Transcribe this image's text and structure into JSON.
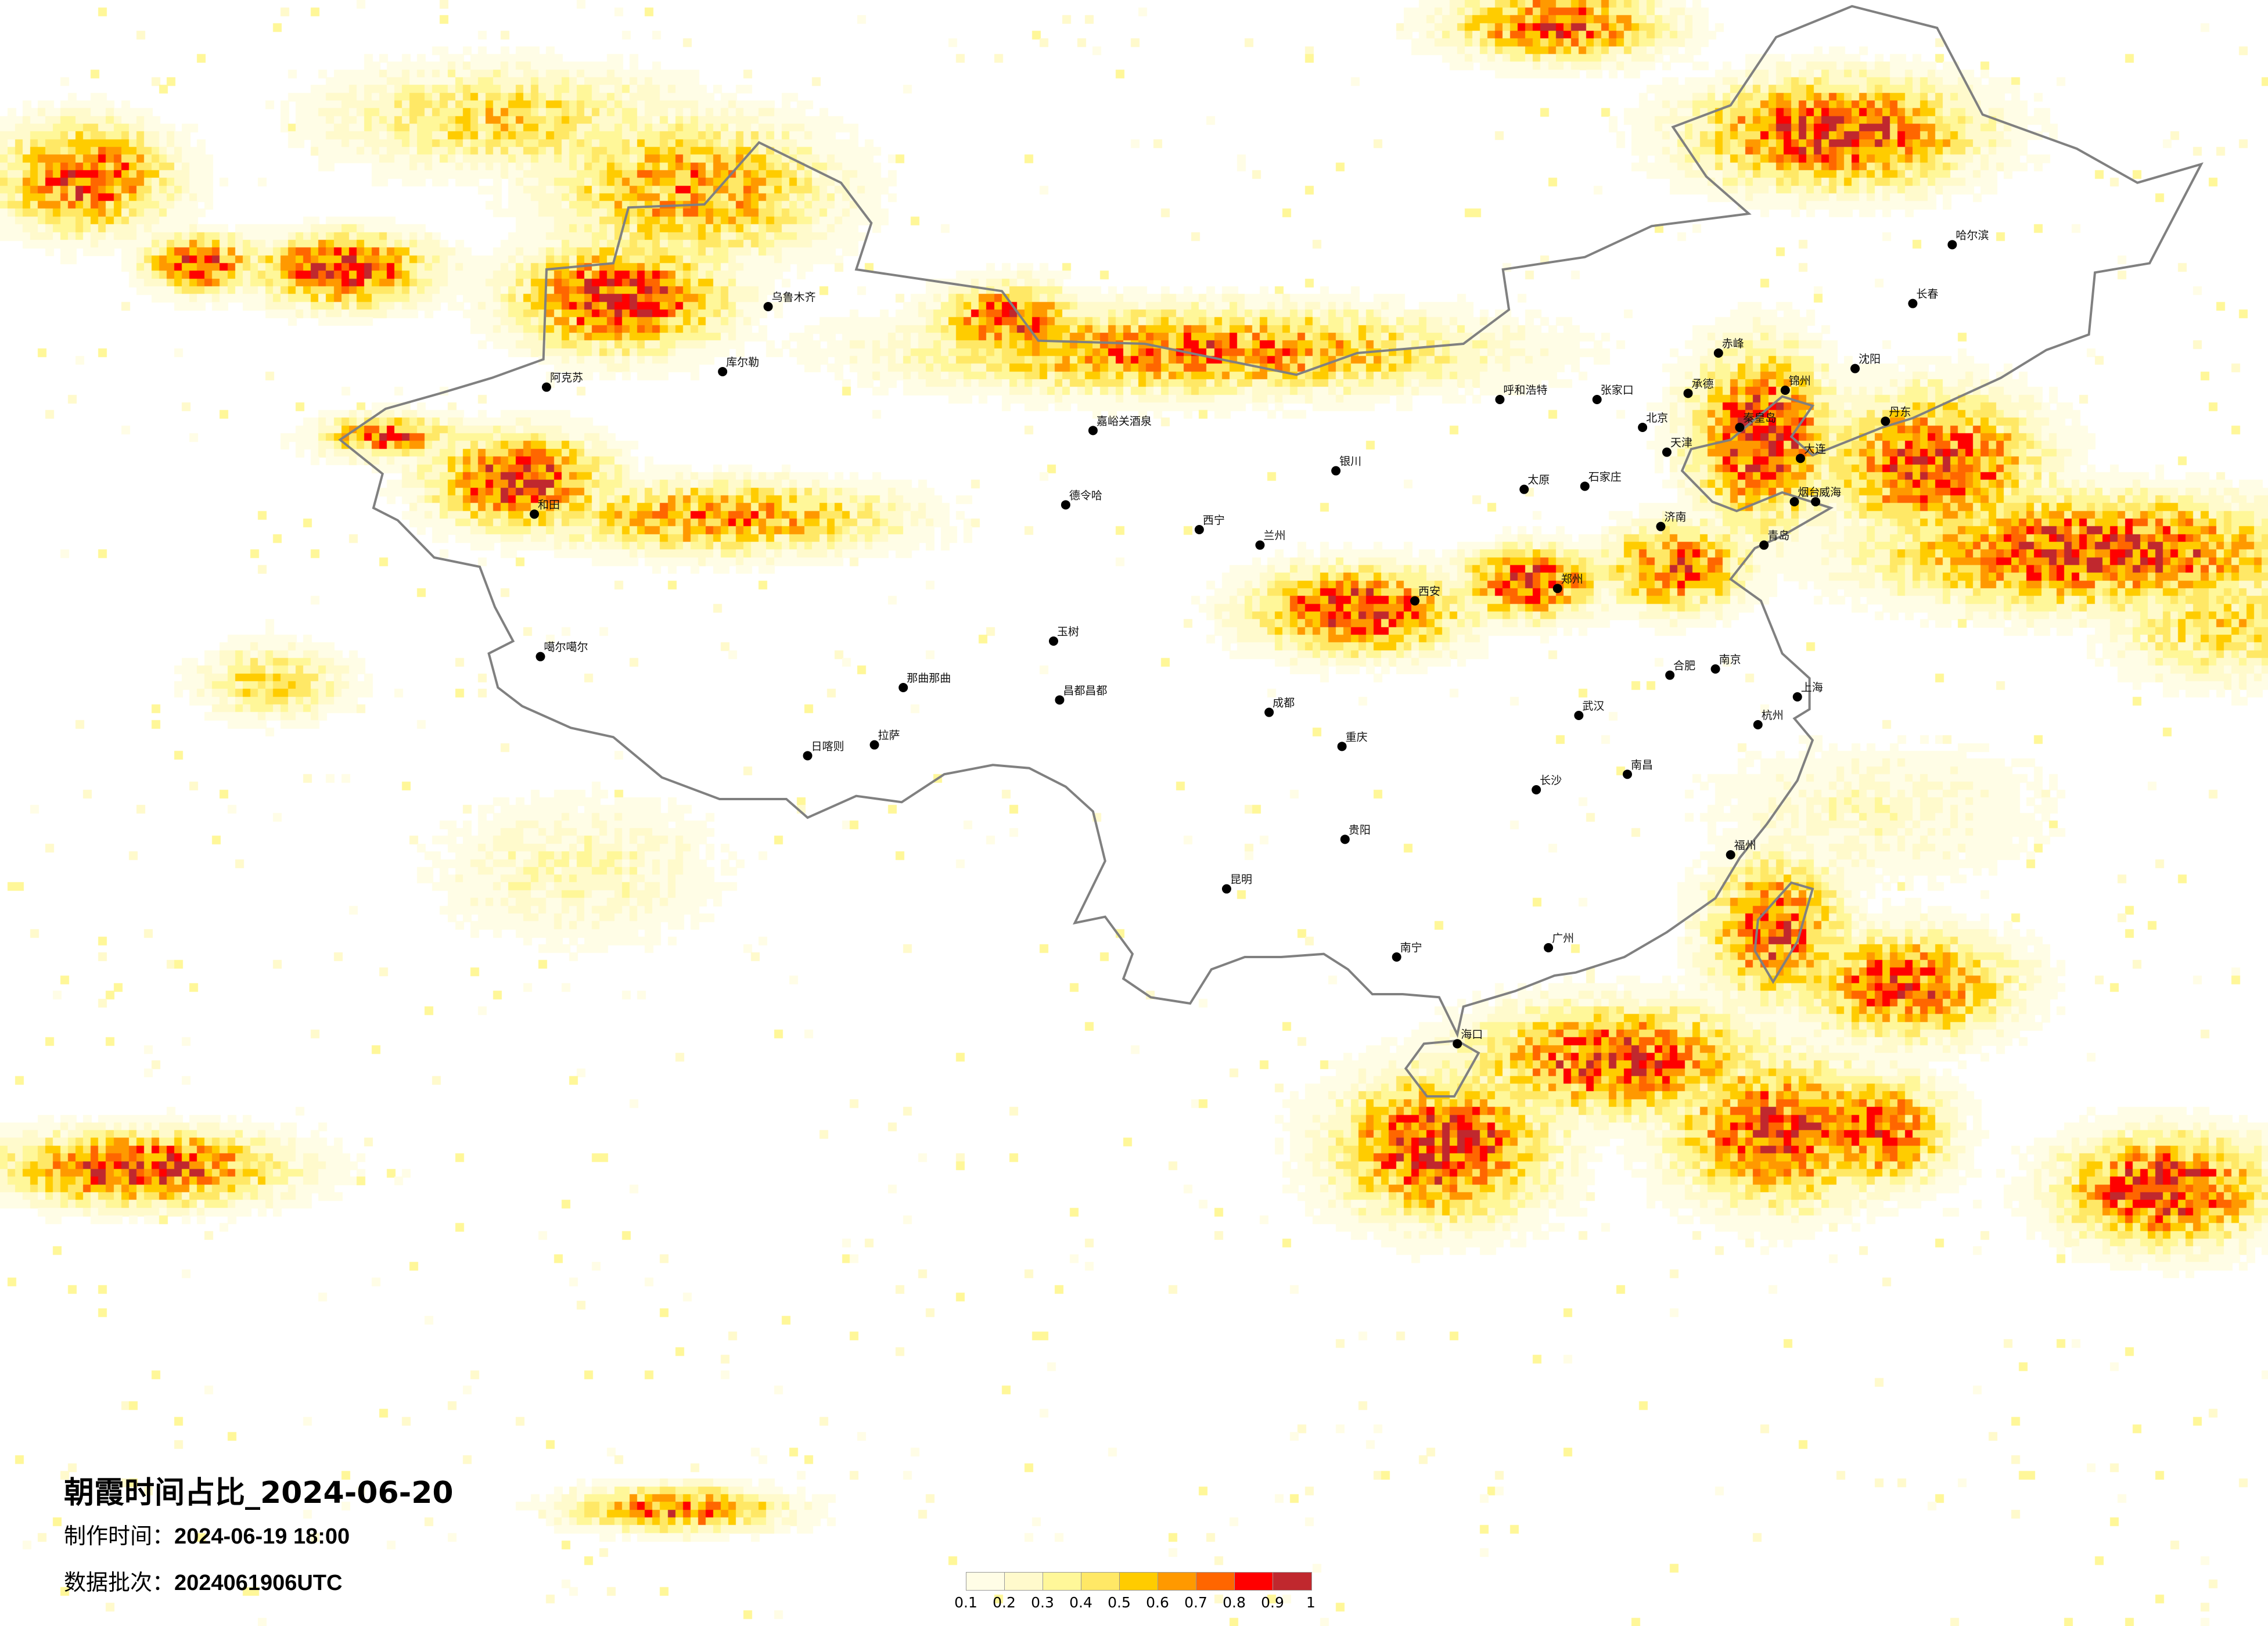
{
  "title": "朝霞时间占比_2024-06-20",
  "made_time": {
    "label": "制作时间：",
    "value": "2024-06-19 18:00"
  },
  "data_batch": {
    "label": "数据批次：",
    "value": "2024061906UTC"
  },
  "legend": {
    "labels": [
      "0.1",
      "0.2",
      "0.3",
      "0.4",
      "0.5",
      "0.6",
      "0.7",
      "0.8",
      "0.9",
      "1"
    ],
    "colors": [
      "#FFFDE6",
      "#FFFACC",
      "#FFF799",
      "#FFE866",
      "#FFCC00",
      "#FF9900",
      "#FF6600",
      "#FF0000",
      "#C0282E"
    ]
  },
  "map": {
    "extent_lon": [
      62.3,
      137.0
    ],
    "extent_lat": [
      1.2,
      53.7
    ],
    "border_color": "#808080",
    "heat_regions": [
      {
        "lon": 82.6,
        "lat": 44.2,
        "rlon": 3,
        "rlat": 1.5,
        "peak": 1.0
      },
      {
        "lon": 73.5,
        "lat": 45.1,
        "rlon": 2.5,
        "rlat": 1.0,
        "peak": 1.0
      },
      {
        "lon": 68.8,
        "lat": 45.3,
        "rlon": 1.5,
        "rlat": 0.8,
        "peak": 0.95
      },
      {
        "lon": 65.0,
        "lat": 48.1,
        "rlon": 2.5,
        "rlat": 1.5,
        "peak": 0.9
      },
      {
        "lon": 85.0,
        "lat": 47.7,
        "rlon": 4,
        "rlat": 2,
        "peak": 0.75
      },
      {
        "lon": 78.8,
        "lat": 50.0,
        "rlon": 5,
        "rlat": 1.5,
        "peak": 0.55
      },
      {
        "lon": 79.3,
        "lat": 38.3,
        "rlon": 2.5,
        "rlat": 1.3,
        "peak": 1.0
      },
      {
        "lon": 86.0,
        "lat": 37.1,
        "rlon": 5,
        "rlat": 1.0,
        "peak": 0.78
      },
      {
        "lon": 75.0,
        "lat": 39.7,
        "rlon": 2,
        "rlat": 0.6,
        "peak": 0.85
      },
      {
        "lon": 101.6,
        "lat": 42.5,
        "rlon": 8,
        "rlat": 1.2,
        "peak": 0.82
      },
      {
        "lon": 95.4,
        "lat": 43.5,
        "rlon": 2,
        "rlat": 1.0,
        "peak": 0.9
      },
      {
        "lon": 122.6,
        "lat": 49.5,
        "rlon": 4,
        "rlat": 1.5,
        "peak": 1.0
      },
      {
        "lon": 113.5,
        "lat": 53.0,
        "rlon": 3,
        "rlat": 1.0,
        "peak": 0.9
      },
      {
        "lon": 106.9,
        "lat": 34.1,
        "rlon": 3,
        "rlat": 1.2,
        "peak": 1.0
      },
      {
        "lon": 112.6,
        "lat": 35.0,
        "rlon": 2,
        "rlat": 1.0,
        "peak": 0.95
      },
      {
        "lon": 120.2,
        "lat": 39.7,
        "rlon": 2,
        "rlat": 2.5,
        "peak": 1.0
      },
      {
        "lon": 125.9,
        "lat": 38.8,
        "rlon": 3,
        "rlat": 2,
        "peak": 0.95
      },
      {
        "lon": 131.2,
        "lat": 36.0,
        "rlon": 6,
        "rlat": 1.5,
        "peak": 1.0
      },
      {
        "lon": 135.4,
        "lat": 33.6,
        "rlon": 3,
        "rlat": 1.5,
        "peak": 0.6
      },
      {
        "lon": 117.4,
        "lat": 35.5,
        "rlon": 2,
        "rlat": 1.2,
        "peak": 0.9
      },
      {
        "lon": 109.7,
        "lat": 16.8,
        "rlon": 3,
        "rlat": 2,
        "peak": 1.0
      },
      {
        "lon": 115.4,
        "lat": 19.6,
        "rlon": 4,
        "rlat": 1.5,
        "peak": 0.95
      },
      {
        "lon": 120.7,
        "lat": 17.3,
        "rlon": 3,
        "rlat": 2,
        "peak": 0.95
      },
      {
        "lon": 120.7,
        "lat": 23.8,
        "rlon": 2,
        "rlat": 2,
        "peak": 0.9
      },
      {
        "lon": 125.0,
        "lat": 22.0,
        "rlon": 3,
        "rlat": 1.5,
        "peak": 0.9
      },
      {
        "lon": 133.5,
        "lat": 15.4,
        "rlon": 3,
        "rlat": 1.5,
        "peak": 1.0
      },
      {
        "lon": 124.0,
        "lat": 17.3,
        "rlon": 2,
        "rlat": 1.5,
        "peak": 0.9
      },
      {
        "lon": 66.9,
        "lat": 16.1,
        "rlon": 4,
        "rlat": 1.0,
        "peak": 1.0
      },
      {
        "lon": 84.5,
        "lat": 5.1,
        "rlon": 3,
        "rlat": 0.6,
        "peak": 0.9
      },
      {
        "lon": 81.2,
        "lat": 25.7,
        "rlon": 4,
        "rlat": 2,
        "peak": 0.35
      },
      {
        "lon": 71.2,
        "lat": 31.8,
        "rlon": 2,
        "rlat": 1.0,
        "peak": 0.6
      },
      {
        "lon": 124.0,
        "lat": 27.6,
        "rlon": 5,
        "rlat": 2,
        "peak": 0.3
      }
    ],
    "cities": [
      {
        "name": "北京",
        "lon": 116.4,
        "lat": 39.9
      },
      {
        "name": "天津",
        "lon": 117.2,
        "lat": 39.1
      },
      {
        "name": "石家庄",
        "lon": 114.5,
        "lat": 38.0
      },
      {
        "name": "济南",
        "lon": 117.0,
        "lat": 36.7
      },
      {
        "name": "青岛",
        "lon": 120.4,
        "lat": 36.1
      },
      {
        "name": "大连",
        "lon": 121.6,
        "lat": 38.9
      },
      {
        "name": "沈阳",
        "lon": 123.4,
        "lat": 41.8
      },
      {
        "name": "哈尔滨",
        "lon": 126.6,
        "lat": 45.8
      },
      {
        "name": "长春",
        "lon": 125.3,
        "lat": 43.9
      },
      {
        "name": "呼和浩特",
        "lon": 111.7,
        "lat": 40.8
      },
      {
        "name": "太原",
        "lon": 112.5,
        "lat": 37.9
      },
      {
        "name": "郑州",
        "lon": 113.6,
        "lat": 34.7
      },
      {
        "name": "西安",
        "lon": 108.9,
        "lat": 34.3
      },
      {
        "name": "兰州",
        "lon": 103.8,
        "lat": 36.1
      },
      {
        "name": "西宁",
        "lon": 101.8,
        "lat": 36.6
      },
      {
        "name": "银川",
        "lon": 106.3,
        "lat": 38.5
      },
      {
        "name": "乌鲁木齐",
        "lon": 87.6,
        "lat": 43.8
      },
      {
        "name": "库尔勒",
        "lon": 86.1,
        "lat": 41.7
      },
      {
        "name": "阿克苏",
        "lon": 80.3,
        "lat": 41.2
      },
      {
        "name": "和田",
        "lon": 79.9,
        "lat": 37.1
      },
      {
        "name": "拉萨",
        "lon": 91.1,
        "lat": 29.65
      },
      {
        "name": "日喀则",
        "lon": 88.9,
        "lat": 29.3
      },
      {
        "name": "那曲那曲",
        "lon": 92.05,
        "lat": 31.5
      },
      {
        "name": "昌都昌都",
        "lon": 97.2,
        "lat": 31.1
      },
      {
        "name": "玉树",
        "lon": 97.0,
        "lat": 33.0
      },
      {
        "name": "德令哈",
        "lon": 97.4,
        "lat": 37.4
      },
      {
        "name": "嘉峪关酒泉",
        "lon": 98.3,
        "lat": 39.8
      },
      {
        "name": "噶尔噶尔",
        "lon": 80.1,
        "lat": 32.5
      },
      {
        "name": "成都",
        "lon": 104.1,
        "lat": 30.7
      },
      {
        "name": "重庆",
        "lon": 106.5,
        "lat": 29.6
      },
      {
        "name": "昆明",
        "lon": 102.7,
        "lat": 25.0
      },
      {
        "name": "贵阳",
        "lon": 106.6,
        "lat": 26.6
      },
      {
        "name": "南宁",
        "lon": 108.3,
        "lat": 22.8
      },
      {
        "name": "广州",
        "lon": 113.3,
        "lat": 23.1
      },
      {
        "name": "长沙",
        "lon": 112.9,
        "lat": 28.2
      },
      {
        "name": "武汉",
        "lon": 114.3,
        "lat": 30.6
      },
      {
        "name": "南昌",
        "lon": 115.9,
        "lat": 28.7
      },
      {
        "name": "福州",
        "lon": 119.3,
        "lat": 26.1
      },
      {
        "name": "杭州",
        "lon": 120.2,
        "lat": 30.3
      },
      {
        "name": "上海",
        "lon": 121.5,
        "lat": 31.2
      },
      {
        "name": "南京",
        "lon": 118.8,
        "lat": 32.1
      },
      {
        "name": "合肥",
        "lon": 117.3,
        "lat": 31.9
      },
      {
        "name": "海口",
        "lon": 110.3,
        "lat": 20.0
      },
      {
        "name": "承德",
        "lon": 117.9,
        "lat": 41.0
      },
      {
        "name": "张家口",
        "lon": 114.9,
        "lat": 40.8
      },
      {
        "name": "秦皇岛",
        "lon": 119.6,
        "lat": 39.9
      },
      {
        "name": "烟台",
        "lon": 121.4,
        "lat": 37.5
      },
      {
        "name": "威海",
        "lon": 122.1,
        "lat": 37.5
      },
      {
        "name": "丹东",
        "lon": 124.4,
        "lat": 40.1
      },
      {
        "name": "赤峰",
        "lon": 118.9,
        "lat": 42.3
      },
      {
        "name": "锦州",
        "lon": 121.1,
        "lat": 41.1
      }
    ]
  }
}
